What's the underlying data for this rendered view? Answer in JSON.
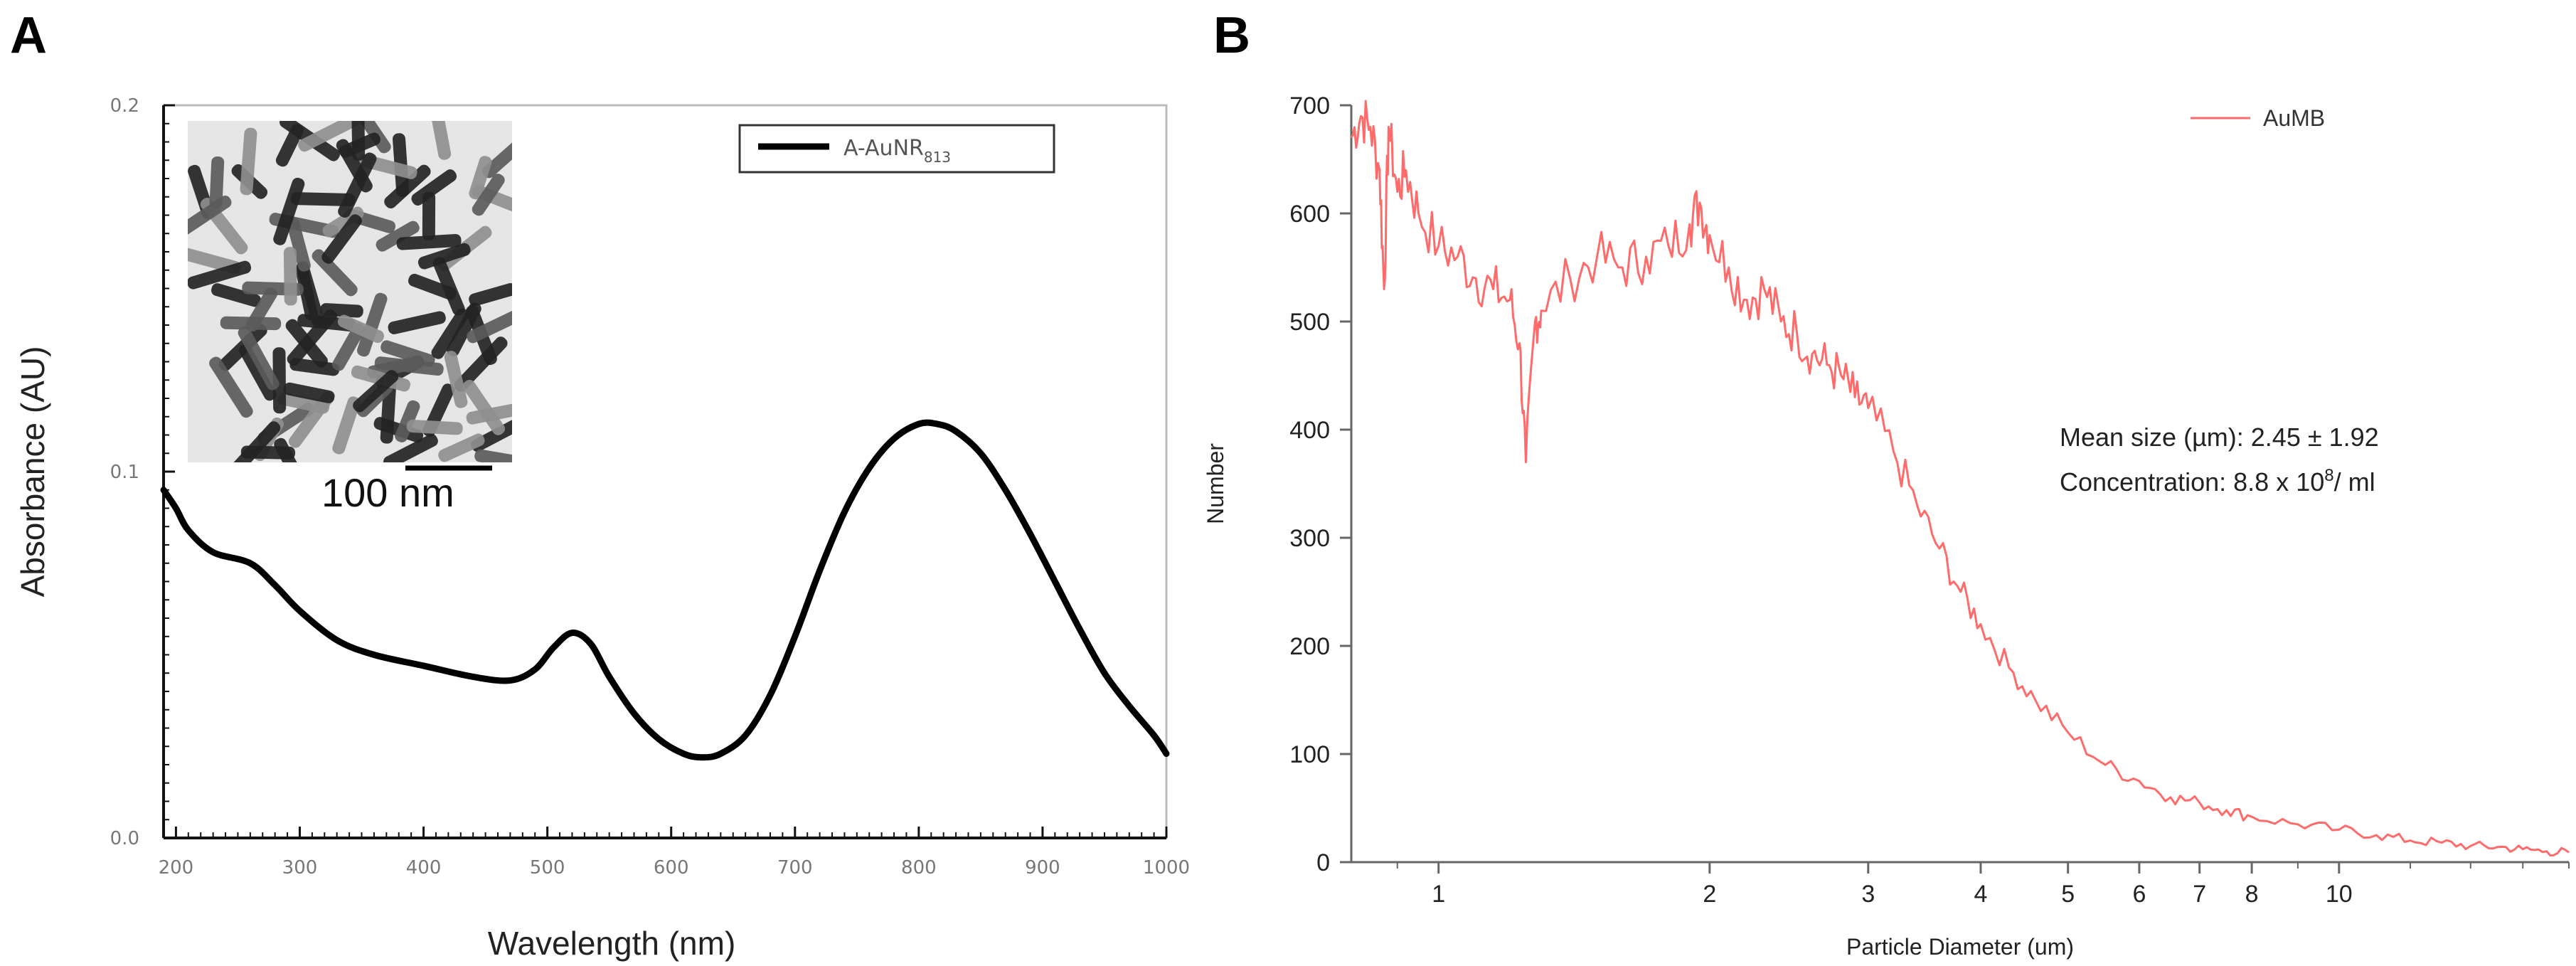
{
  "panels": {
    "a_label": "A",
    "b_label": "B"
  },
  "chart_data": [
    {
      "type": "line",
      "panel": "A",
      "xlabel": "Wavelength (nm)",
      "ylabel": "Absorbance (AU)",
      "xlim": [
        190,
        1000
      ],
      "ylim": [
        0.0,
        0.2
      ],
      "x_ticks": [
        200,
        300,
        400,
        500,
        600,
        700,
        800,
        900,
        1000
      ],
      "y_ticks": [
        0.0,
        0.1,
        0.2
      ],
      "y_tick_labels": [
        "0.0",
        "0.1",
        "0.2"
      ],
      "grid": false,
      "legend": {
        "position": "top-right",
        "entry_main": "A-AuNR",
        "entry_sub": "813"
      },
      "inset": {
        "description_scale_bar": "100 nm"
      },
      "series": [
        {
          "name": "A-AuNR813",
          "color": "#000000",
          "x": [
            190,
            200,
            210,
            230,
            260,
            280,
            300,
            330,
            360,
            400,
            440,
            470,
            490,
            505,
            520,
            535,
            550,
            570,
            590,
            610,
            625,
            640,
            660,
            680,
            700,
            720,
            740,
            760,
            780,
            800,
            815,
            830,
            850,
            870,
            890,
            910,
            930,
            950,
            970,
            990,
            1000
          ],
          "values": [
            0.095,
            0.09,
            0.084,
            0.078,
            0.075,
            0.069,
            0.062,
            0.054,
            0.05,
            0.047,
            0.044,
            0.043,
            0.046,
            0.052,
            0.056,
            0.053,
            0.044,
            0.034,
            0.027,
            0.023,
            0.022,
            0.023,
            0.028,
            0.039,
            0.055,
            0.073,
            0.089,
            0.101,
            0.109,
            0.113,
            0.113,
            0.111,
            0.105,
            0.095,
            0.083,
            0.07,
            0.057,
            0.045,
            0.036,
            0.028,
            0.023
          ]
        }
      ]
    },
    {
      "type": "line",
      "panel": "B",
      "xlabel": "Particle Diameter (um)",
      "ylabel": "Number",
      "x_scale": "log",
      "xlim": [
        0.8,
        18
      ],
      "ylim": [
        0,
        700
      ],
      "x_ticks": [
        1,
        2,
        3,
        4,
        5,
        6,
        7,
        8,
        10
      ],
      "y_ticks": [
        0,
        100,
        200,
        300,
        400,
        500,
        600,
        700
      ],
      "grid": false,
      "legend": {
        "position": "top-right"
      },
      "annotations": {
        "mean_size": "Mean size (µm): 2.45 ± 1.92",
        "concentration_prefix": "Concentration: 8.8 x 10",
        "concentration_sup": "8",
        "concentration_suffix": "/ ml"
      },
      "series": [
        {
          "name": "AuMB",
          "color": "#ff6b6b",
          "x": [
            0.8,
            0.82,
            0.84,
            0.86,
            0.87,
            0.88,
            0.9,
            0.92,
            0.95,
            1.0,
            1.05,
            1.1,
            1.15,
            1.2,
            1.23,
            1.25,
            1.28,
            1.3,
            1.4,
            1.5,
            1.6,
            1.7,
            1.8,
            1.9,
            1.95,
            2.0,
            2.1,
            2.2,
            2.3,
            2.4,
            2.5,
            2.6,
            2.7,
            2.8,
            2.9,
            3.0,
            3.2,
            3.4,
            3.6,
            3.8,
            4.0,
            4.3,
            4.6,
            5.0,
            5.5,
            6.0,
            6.5,
            7.0,
            7.5,
            8.0,
            9.0,
            10.0,
            11.0,
            12.0,
            13.0,
            14.0,
            15.0,
            16.0,
            17.0,
            18.0
          ],
          "values": [
            670,
            690,
            680,
            640,
            530,
            680,
            620,
            640,
            600,
            570,
            560,
            540,
            530,
            520,
            480,
            370,
            500,
            510,
            540,
            560,
            550,
            560,
            570,
            590,
            610,
            580,
            550,
            520,
            530,
            500,
            490,
            470,
            460,
            450,
            430,
            420,
            380,
            330,
            290,
            250,
            220,
            180,
            150,
            120,
            90,
            75,
            60,
            55,
            48,
            42,
            35,
            30,
            25,
            20,
            18,
            15,
            14,
            12,
            10,
            9
          ]
        }
      ]
    }
  ]
}
